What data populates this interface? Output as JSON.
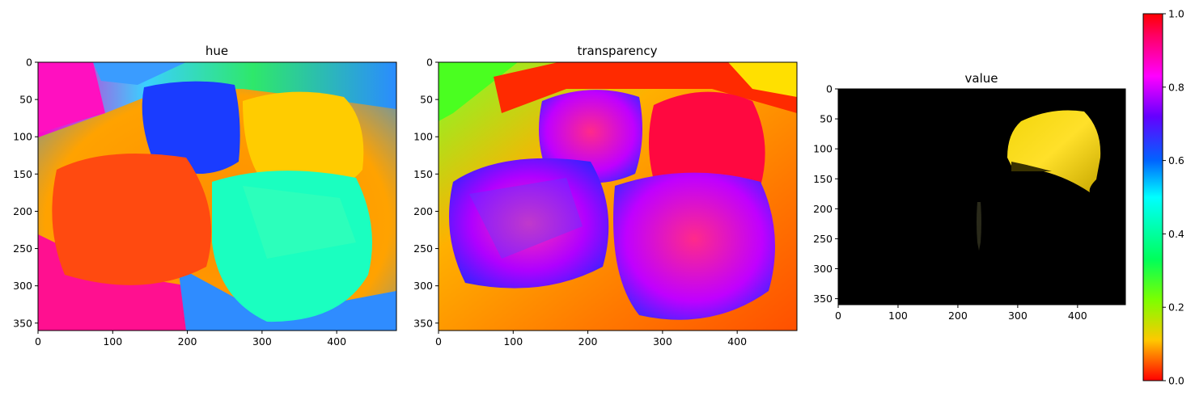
{
  "chart_data": [
    {
      "type": "heatmap",
      "title": "hue",
      "xticks": [
        0,
        100,
        200,
        300,
        400
      ],
      "yticks": [
        0,
        50,
        100,
        150,
        200,
        250,
        300,
        350
      ],
      "xlim": [
        0,
        480
      ],
      "ylim": [
        360,
        0
      ],
      "colormap": "hsv"
    },
    {
      "type": "heatmap",
      "title": "transparency",
      "xticks": [
        0,
        100,
        200,
        300,
        400
      ],
      "yticks": [
        0,
        50,
        100,
        150,
        200,
        250,
        300,
        350
      ],
      "xlim": [
        0,
        480
      ],
      "ylim": [
        360,
        0
      ],
      "colormap": "hsv"
    },
    {
      "type": "heatmap",
      "title": "value",
      "xticks": [
        0,
        100,
        200,
        300,
        400
      ],
      "yticks": [
        0,
        50,
        100,
        150,
        200,
        250,
        300,
        350
      ],
      "xlim": [
        0,
        480
      ],
      "ylim": [
        360,
        0
      ],
      "colormap": "masked-rgb"
    }
  ],
  "colorbar": {
    "ticks": [
      "0.0",
      "0.2",
      "0.4",
      "0.6",
      "0.8",
      "1.0"
    ],
    "range": [
      0,
      1
    ],
    "colors": [
      "#ff0000",
      "#ffc800",
      "#7dff00",
      "#00ff5a",
      "#00ffff",
      "#0064ff",
      "#6400ff",
      "#ff00ff",
      "#ff0064",
      "#ff0000"
    ]
  }
}
